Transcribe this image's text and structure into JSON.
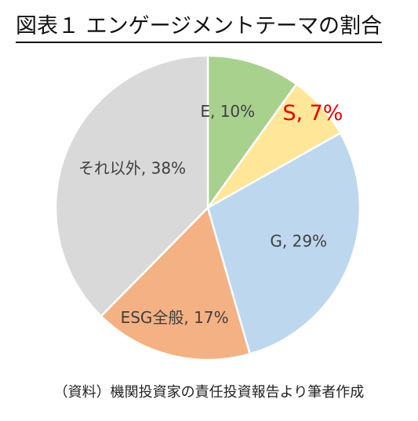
{
  "title": "図表１ エンゲージメントテーマの割合",
  "source": "（資料）機関投資家の責任投資報告より筆者作成",
  "chart_data": {
    "type": "pie",
    "title": "図表１ エンゲージメントテーマの割合",
    "slices": [
      {
        "name": "E",
        "value": 10,
        "label": "E, 10%",
        "color": "#a9d18e",
        "label_color": "#404040"
      },
      {
        "name": "S",
        "value": 7,
        "label": "S, 7%",
        "color": "#ffe699",
        "label_color": "#e60000"
      },
      {
        "name": "G",
        "value": 29,
        "label": "G, 29%",
        "color": "#bdd7ee",
        "label_color": "#404040"
      },
      {
        "name": "ESG全般",
        "value": 17,
        "label": "ESG全般, 17%",
        "color": "#f4b183",
        "label_color": "#404040"
      },
      {
        "name": "それ以外",
        "value": 38,
        "label": "それ以外, 38%",
        "color": "#d9d9d9",
        "label_color": "#404040"
      }
    ],
    "start_angle": "12 o'clock",
    "direction": "clockwise",
    "legend": "none"
  }
}
